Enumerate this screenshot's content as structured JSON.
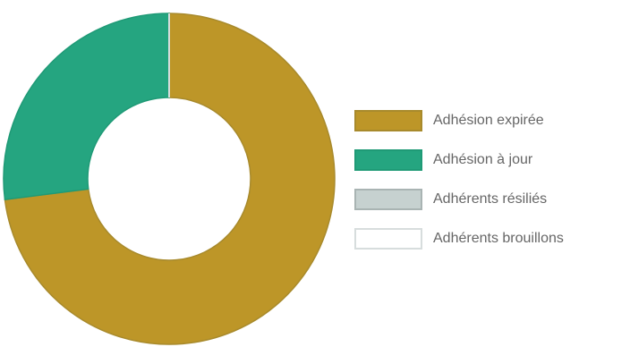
{
  "chart_data": {
    "type": "pie",
    "donut": true,
    "legend_position": "right",
    "categories": [
      "Adhésion expirée",
      "Adhésion à jour",
      "Adhérents résiliés",
      "Adhérents brouillons"
    ],
    "values": [
      73,
      27,
      0,
      0
    ],
    "colors": [
      "#bd9628",
      "#25a580",
      "#c6d1d0",
      "#ffffff"
    ],
    "border_colors": [
      "#a88a2c",
      "#1f9a76",
      "#a9b4b3",
      "#d7dddd"
    ],
    "title": ""
  }
}
